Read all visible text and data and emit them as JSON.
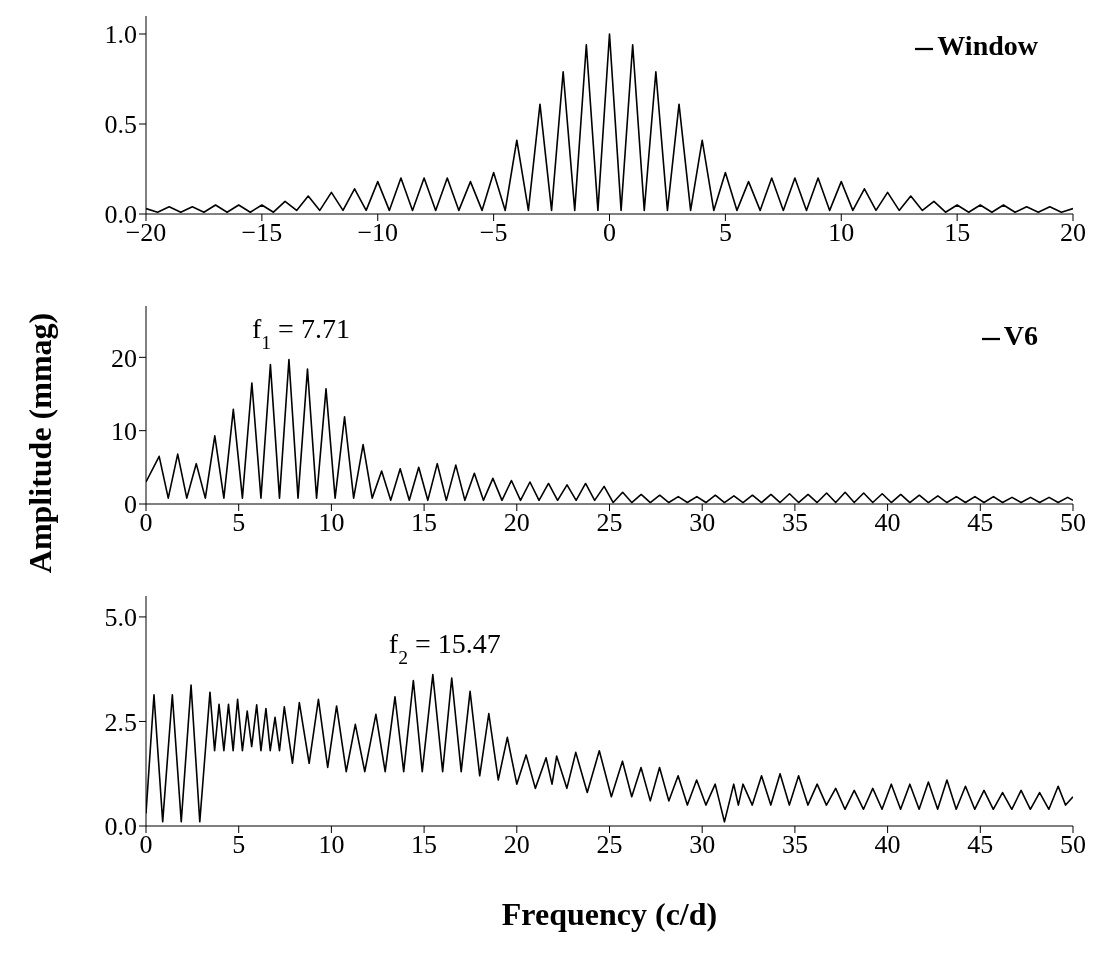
{
  "chart_data": [
    {
      "type": "line",
      "legend": "top right",
      "marker": "none",
      "xlim": [
        -20,
        20
      ],
      "ylim": [
        0,
        1.1
      ],
      "xticks": [
        {
          "value": -20,
          "label": "−20"
        },
        {
          "value": -15,
          "label": "−15"
        },
        {
          "value": -10,
          "label": "−10"
        },
        {
          "value": -5,
          "label": "−5"
        },
        0,
        5,
        10,
        15,
        20
      ],
      "yticks": [
        {
          "value": 0,
          "label": "0.0"
        },
        {
          "value": 0.5,
          "label": "0.5"
        },
        {
          "value": 1,
          "label": "1.0"
        }
      ],
      "series": [
        {
          "name": "Window",
          "color": "#000000",
          "x": [
            -20,
            -19.5,
            -19,
            -18.5,
            -18,
            -17.5,
            -17,
            -16.5,
            -16,
            -15.5,
            -15,
            -14.5,
            -14,
            -13.5,
            -13,
            -12.5,
            -12,
            -11.5,
            -11,
            -10.5,
            -10,
            -9.5,
            -9,
            -8.5,
            -8,
            -7.5,
            -7,
            -6.5,
            -6,
            -5.5,
            -5,
            -4.5,
            -4,
            -3.5,
            -3,
            -2.5,
            -2,
            -1.5,
            -1,
            -0.5,
            0,
            0.5,
            1,
            1.5,
            2,
            2.5,
            3,
            3.5,
            4,
            4.5,
            5,
            5.5,
            6,
            6.5,
            7,
            7.5,
            8,
            8.5,
            9,
            9.5,
            10,
            10.5,
            11,
            11.5,
            12,
            12.5,
            13,
            13.5,
            14,
            14.5,
            15,
            15.5,
            16,
            16.5,
            17,
            17.5,
            18,
            18.5,
            19,
            19.5,
            20
          ],
          "values": [
            0.03,
            0.01,
            0.04,
            0.01,
            0.04,
            0.01,
            0.05,
            0.01,
            0.05,
            0.01,
            0.05,
            0.01,
            0.07,
            0.02,
            0.1,
            0.02,
            0.12,
            0.02,
            0.14,
            0.02,
            0.18,
            0.02,
            0.2,
            0.02,
            0.2,
            0.02,
            0.2,
            0.02,
            0.18,
            0.02,
            0.23,
            0.02,
            0.41,
            0.02,
            0.61,
            0.02,
            0.79,
            0.02,
            0.94,
            0.02,
            1.0,
            0.02,
            0.94,
            0.02,
            0.79,
            0.02,
            0.61,
            0.02,
            0.41,
            0.02,
            0.23,
            0.02,
            0.18,
            0.02,
            0.2,
            0.02,
            0.2,
            0.02,
            0.2,
            0.02,
            0.18,
            0.02,
            0.14,
            0.02,
            0.12,
            0.02,
            0.1,
            0.02,
            0.07,
            0.01,
            0.05,
            0.01,
            0.05,
            0.01,
            0.05,
            0.01,
            0.04,
            0.01,
            0.04,
            0.01,
            0.03
          ]
        }
      ]
    },
    {
      "type": "line",
      "legend": "top right",
      "marker": "none",
      "xlim": [
        0,
        50
      ],
      "ylim": [
        0,
        27
      ],
      "xticks": [
        0,
        5,
        10,
        15,
        20,
        25,
        30,
        35,
        40,
        45,
        50
      ],
      "yticks": [
        0,
        10,
        20
      ],
      "ylabel": "Amplitude (mmag)",
      "annotations": [
        {
          "text": "f$_{1}$ = 7.71",
          "x": 7.71,
          "y": 19.7
        }
      ],
      "series": [
        {
          "name": "V6",
          "color": "#000000",
          "x": [
            0,
            0.71,
            1.2,
            1.71,
            2.2,
            2.71,
            3.2,
            3.71,
            4.2,
            4.71,
            5.2,
            5.71,
            6.2,
            6.71,
            7.2,
            7.71,
            8.2,
            8.71,
            9.2,
            9.71,
            10.2,
            10.71,
            11.2,
            11.71,
            12.2,
            12.71,
            13.2,
            13.71,
            14.2,
            14.71,
            15.2,
            15.71,
            16.2,
            16.71,
            17.2,
            17.71,
            18.2,
            18.71,
            19.2,
            19.71,
            20.2,
            20.71,
            21.2,
            21.71,
            22.2,
            22.71,
            23.2,
            23.71,
            24.2,
            24.71,
            25.2,
            25.71,
            26.2,
            26.71,
            27.2,
            27.71,
            28.2,
            28.71,
            29.2,
            29.71,
            30.2,
            30.71,
            31.2,
            31.71,
            32.2,
            32.71,
            33.2,
            33.71,
            34.2,
            34.71,
            35.2,
            35.71,
            36.2,
            36.71,
            37.2,
            37.71,
            38.2,
            38.71,
            39.2,
            39.71,
            40.2,
            40.71,
            41.2,
            41.71,
            42.2,
            42.71,
            43.2,
            43.71,
            44.2,
            44.71,
            45.2,
            45.71,
            46.2,
            46.71,
            47.2,
            47.71,
            48.2,
            48.71,
            49.2,
            49.71,
            50
          ],
          "values": [
            3.0,
            6.5,
            0.8,
            6.8,
            0.8,
            5.5,
            0.8,
            9.3,
            0.8,
            12.9,
            0.8,
            16.5,
            0.8,
            19.0,
            0.8,
            19.7,
            0.8,
            18.4,
            0.8,
            15.7,
            0.8,
            11.9,
            0.8,
            8.1,
            0.8,
            4.5,
            0.5,
            4.8,
            0.5,
            5.0,
            0.5,
            5.5,
            0.5,
            5.3,
            0.5,
            4.2,
            0.5,
            3.5,
            0.5,
            3.2,
            0.5,
            3.0,
            0.5,
            2.8,
            0.5,
            2.6,
            0.5,
            2.8,
            0.5,
            2.4,
            0.2,
            1.6,
            0.2,
            1.3,
            0.2,
            1.2,
            0.2,
            1.0,
            0.2,
            1.0,
            0.2,
            1.2,
            0.2,
            1.1,
            0.2,
            1.2,
            0.2,
            1.3,
            0.2,
            1.4,
            0.2,
            1.3,
            0.2,
            1.5,
            0.2,
            1.6,
            0.2,
            1.5,
            0.2,
            1.4,
            0.2,
            1.3,
            0.2,
            1.2,
            0.2,
            1.1,
            0.2,
            1.0,
            0.2,
            1.0,
            0.2,
            1.0,
            0.2,
            0.9,
            0.2,
            0.9,
            0.2,
            0.9,
            0.2,
            0.9,
            0.5
          ]
        }
      ]
    },
    {
      "type": "line",
      "marker": "none",
      "xlim": [
        0,
        50
      ],
      "ylim": [
        0,
        5.5
      ],
      "xticks": [
        0,
        5,
        10,
        15,
        20,
        25,
        30,
        35,
        40,
        45,
        50
      ],
      "yticks": [
        {
          "value": 0,
          "label": "0.0"
        },
        {
          "value": 2.5,
          "label": "2.5"
        },
        {
          "value": 5,
          "label": "5.0"
        }
      ],
      "xlabel": "Frequency (c/d)",
      "annotations": [
        {
          "text": "f$_{2}$ = 15.47",
          "x": 15.47,
          "y": 3.62
        }
      ],
      "series": [
        {
          "color": "#000000",
          "x": [
            0,
            0.43,
            0.9,
            1.42,
            1.9,
            2.43,
            2.9,
            3.45,
            3.7,
            3.94,
            4.2,
            4.45,
            4.7,
            4.94,
            5.2,
            5.46,
            5.7,
            5.97,
            6.2,
            6.47,
            6.7,
            6.96,
            7.2,
            7.46,
            7.9,
            8.27,
            8.8,
            9.3,
            9.8,
            10.28,
            10.8,
            11.29,
            11.8,
            12.4,
            12.9,
            13.43,
            13.9,
            14.42,
            14.9,
            15.47,
            16.0,
            16.49,
            17.0,
            17.48,
            18.0,
            18.49,
            19.0,
            19.49,
            20.0,
            20.5,
            21.0,
            21.58,
            21.9,
            22.15,
            22.7,
            23.18,
            23.8,
            24.45,
            25.1,
            25.7,
            26.2,
            26.7,
            27.2,
            27.7,
            28.2,
            28.7,
            29.2,
            29.7,
            30.2,
            30.7,
            31.2,
            31.7,
            31.95,
            32.2,
            32.7,
            33.2,
            33.7,
            34.2,
            34.7,
            35.2,
            35.7,
            36.2,
            36.7,
            37.2,
            37.7,
            38.2,
            38.7,
            39.2,
            39.7,
            40.2,
            40.7,
            41.2,
            41.7,
            42.2,
            42.7,
            43.2,
            43.7,
            44.2,
            44.7,
            45.2,
            45.7,
            46.2,
            46.7,
            47.2,
            47.7,
            48.2,
            48.7,
            49.2,
            49.6,
            50
          ],
          "values": [
            0.3,
            3.14,
            0.1,
            3.14,
            0.1,
            3.37,
            0.1,
            3.2,
            1.8,
            2.91,
            1.8,
            2.91,
            1.8,
            3.03,
            1.8,
            2.75,
            1.9,
            2.9,
            1.8,
            2.81,
            1.8,
            2.6,
            1.8,
            2.85,
            1.5,
            2.95,
            1.5,
            3.03,
            1.4,
            2.87,
            1.3,
            2.43,
            1.3,
            2.67,
            1.3,
            3.09,
            1.3,
            3.48,
            1.3,
            3.62,
            1.3,
            3.54,
            1.3,
            3.22,
            1.2,
            2.69,
            1.1,
            2.12,
            1.0,
            1.7,
            0.9,
            1.63,
            1.0,
            1.67,
            0.9,
            1.76,
            0.8,
            1.8,
            0.7,
            1.55,
            0.7,
            1.4,
            0.6,
            1.4,
            0.6,
            1.2,
            0.5,
            1.1,
            0.5,
            1.0,
            0.1,
            1.0,
            0.5,
            1.0,
            0.5,
            1.2,
            0.5,
            1.25,
            0.5,
            1.2,
            0.5,
            1.0,
            0.5,
            0.9,
            0.4,
            0.85,
            0.4,
            0.9,
            0.4,
            1.0,
            0.4,
            1.0,
            0.4,
            1.05,
            0.4,
            1.1,
            0.4,
            0.95,
            0.4,
            0.85,
            0.4,
            0.8,
            0.4,
            0.85,
            0.4,
            0.8,
            0.4,
            0.95,
            0.5,
            0.7
          ]
        }
      ]
    }
  ]
}
